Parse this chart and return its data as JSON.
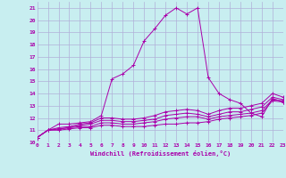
{
  "xlabel": "Windchill (Refroidissement éolien,°C)",
  "bg_color": "#c8eef0",
  "grid_color": "#b0b0d8",
  "line_color": "#aa00aa",
  "xmin": 0,
  "xmax": 23,
  "ymin": 10,
  "ymax": 21.5,
  "yticks": [
    10,
    11,
    12,
    13,
    14,
    15,
    16,
    17,
    18,
    19,
    20,
    21
  ],
  "xticks": [
    0,
    1,
    2,
    3,
    4,
    5,
    6,
    7,
    8,
    9,
    10,
    11,
    12,
    13,
    14,
    15,
    16,
    17,
    18,
    19,
    20,
    21,
    22,
    23
  ],
  "lines": [
    {
      "x": [
        0,
        1,
        2,
        3,
        4,
        5,
        6,
        7,
        8,
        9,
        10,
        11,
        12,
        13,
        14,
        15,
        16,
        17,
        18,
        19,
        20,
        21,
        22,
        23
      ],
      "y": [
        10.4,
        11.0,
        11.0,
        11.1,
        11.2,
        11.2,
        11.4,
        11.4,
        11.3,
        11.3,
        11.3,
        11.4,
        11.5,
        11.5,
        11.6,
        11.6,
        11.7,
        11.9,
        12.0,
        12.1,
        12.2,
        12.4,
        13.4,
        13.3
      ]
    },
    {
      "x": [
        0,
        1,
        2,
        3,
        4,
        5,
        6,
        7,
        8,
        9,
        10,
        11,
        12,
        13,
        14,
        15,
        16,
        17,
        18,
        19,
        20,
        21,
        22,
        23
      ],
      "y": [
        10.4,
        11.0,
        11.1,
        11.2,
        11.3,
        11.3,
        11.6,
        11.6,
        11.5,
        11.5,
        11.6,
        11.7,
        11.9,
        12.0,
        12.1,
        12.1,
        11.9,
        12.1,
        12.2,
        12.3,
        12.4,
        12.6,
        13.5,
        13.4
      ]
    },
    {
      "x": [
        0,
        1,
        2,
        3,
        4,
        5,
        6,
        7,
        8,
        9,
        10,
        11,
        12,
        13,
        14,
        15,
        16,
        17,
        18,
        19,
        20,
        21,
        22,
        23
      ],
      "y": [
        10.4,
        11.0,
        11.1,
        11.2,
        11.4,
        11.5,
        11.8,
        11.8,
        11.7,
        11.7,
        11.8,
        11.9,
        12.2,
        12.3,
        12.4,
        12.3,
        12.1,
        12.3,
        12.5,
        12.5,
        12.7,
        12.9,
        13.7,
        13.5
      ]
    },
    {
      "x": [
        0,
        1,
        2,
        3,
        4,
        5,
        6,
        7,
        8,
        9,
        10,
        11,
        12,
        13,
        14,
        15,
        16,
        17,
        18,
        19,
        20,
        21,
        22,
        23
      ],
      "y": [
        10.4,
        11.0,
        11.2,
        11.3,
        11.5,
        11.6,
        12.0,
        12.0,
        11.9,
        11.9,
        12.0,
        12.2,
        12.5,
        12.6,
        12.7,
        12.6,
        12.3,
        12.6,
        12.8,
        12.8,
        13.0,
        13.2,
        14.0,
        13.7
      ]
    },
    {
      "x": [
        0,
        1,
        2,
        3,
        4,
        5,
        6,
        7,
        8,
        9,
        10,
        11,
        12,
        13,
        14,
        15,
        16,
        17,
        18,
        19,
        20,
        21,
        22,
        23
      ],
      "y": [
        10.4,
        11.0,
        11.5,
        11.5,
        11.6,
        11.7,
        12.2,
        15.2,
        15.6,
        16.3,
        18.3,
        19.3,
        20.4,
        21.0,
        20.5,
        21.0,
        15.3,
        14.0,
        13.5,
        13.2,
        12.4,
        12.1,
        13.6,
        13.3
      ]
    }
  ]
}
